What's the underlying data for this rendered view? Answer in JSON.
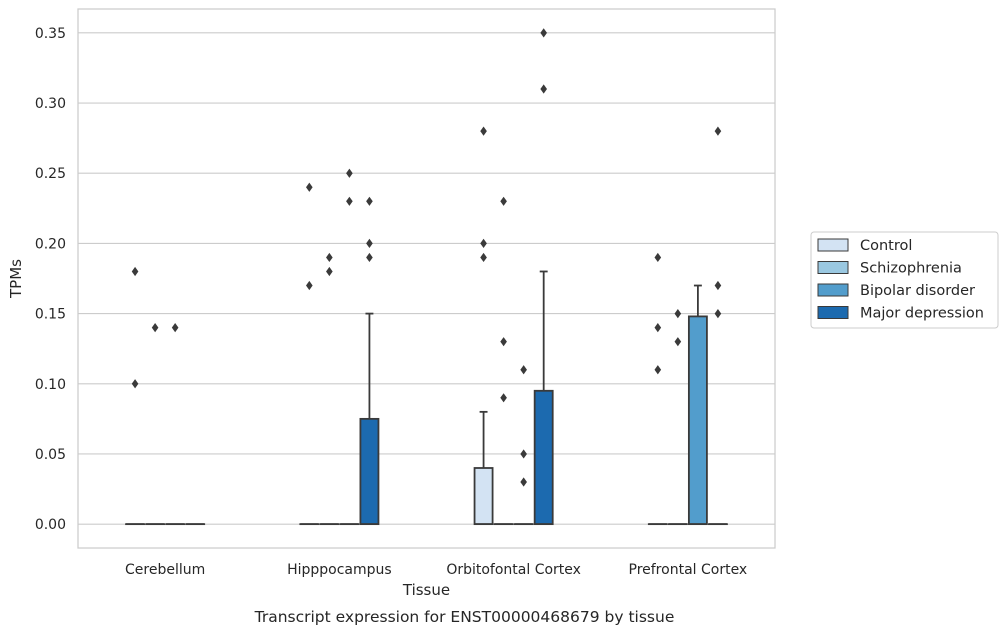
{
  "chart_data": {
    "type": "box",
    "caption": "Transcript expression for ENST00000468679 by tissue",
    "xlabel": "Tissue",
    "ylabel": "TPMs",
    "ylim": [
      -0.017,
      0.367
    ],
    "yticks": [
      0.0,
      0.05,
      0.1,
      0.15,
      0.2,
      0.25,
      0.3,
      0.35
    ],
    "ytick_labels": [
      "0.00",
      "0.05",
      "0.10",
      "0.15",
      "0.20",
      "0.25",
      "0.30",
      "0.35"
    ],
    "grid": "horizontal",
    "legend_position": "right",
    "categories": [
      "Cerebellum",
      "Hipppocampus",
      "Orbitofontal Cortex",
      "Prefrontal Cortex"
    ],
    "series": [
      {
        "name": "Control",
        "color": "#d3e3f3"
      },
      {
        "name": "Schizophrenia",
        "color": "#9ac8e1"
      },
      {
        "name": "Bipolar disorder",
        "color": "#529dcc"
      },
      {
        "name": "Major depression",
        "color": "#1c6aaf"
      }
    ],
    "boxes": [
      {
        "category": 0,
        "series": 0,
        "q1": 0,
        "median": 0,
        "q3": 0,
        "whisker_low": 0,
        "whisker_high": 0,
        "outliers": [
          0.18,
          0.1
        ]
      },
      {
        "category": 0,
        "series": 1,
        "q1": 0,
        "median": 0,
        "q3": 0,
        "whisker_low": 0,
        "whisker_high": 0,
        "outliers": [
          0.14
        ]
      },
      {
        "category": 0,
        "series": 2,
        "q1": 0,
        "median": 0,
        "q3": 0,
        "whisker_low": 0,
        "whisker_high": 0,
        "outliers": [
          0.14
        ]
      },
      {
        "category": 0,
        "series": 3,
        "q1": 0,
        "median": 0,
        "q3": 0,
        "whisker_low": 0,
        "whisker_high": 0,
        "outliers": []
      },
      {
        "category": 1,
        "series": 0,
        "q1": 0,
        "median": 0,
        "q3": 0,
        "whisker_low": 0,
        "whisker_high": 0,
        "outliers": [
          0.24,
          0.17
        ]
      },
      {
        "category": 1,
        "series": 1,
        "q1": 0,
        "median": 0,
        "q3": 0,
        "whisker_low": 0,
        "whisker_high": 0,
        "outliers": [
          0.19,
          0.18
        ]
      },
      {
        "category": 1,
        "series": 2,
        "q1": 0,
        "median": 0,
        "q3": 0,
        "whisker_low": 0,
        "whisker_high": 0,
        "outliers": [
          0.25,
          0.23
        ]
      },
      {
        "category": 1,
        "series": 3,
        "q1": 0,
        "median": 0,
        "q3": 0.075,
        "whisker_low": 0,
        "whisker_high": 0.15,
        "outliers": [
          0.23,
          0.2,
          0.19
        ]
      },
      {
        "category": 2,
        "series": 0,
        "q1": 0,
        "median": 0,
        "q3": 0.04,
        "whisker_low": 0,
        "whisker_high": 0.08,
        "outliers": [
          0.28,
          0.2,
          0.19
        ]
      },
      {
        "category": 2,
        "series": 1,
        "q1": 0,
        "median": 0,
        "q3": 0,
        "whisker_low": 0,
        "whisker_high": 0,
        "outliers": [
          0.23,
          0.13,
          0.09
        ]
      },
      {
        "category": 2,
        "series": 2,
        "q1": 0,
        "median": 0,
        "q3": 0,
        "whisker_low": 0,
        "whisker_high": 0,
        "outliers": [
          0.11,
          0.05,
          0.03
        ]
      },
      {
        "category": 2,
        "series": 3,
        "q1": 0,
        "median": 0,
        "q3": 0.095,
        "whisker_low": 0,
        "whisker_high": 0.18,
        "outliers": [
          0.35,
          0.31
        ]
      },
      {
        "category": 3,
        "series": 0,
        "q1": 0,
        "median": 0,
        "q3": 0,
        "whisker_low": 0,
        "whisker_high": 0,
        "outliers": [
          0.19,
          0.14,
          0.11
        ]
      },
      {
        "category": 3,
        "series": 1,
        "q1": 0,
        "median": 0,
        "q3": 0,
        "whisker_low": 0,
        "whisker_high": 0,
        "outliers": [
          0.15,
          0.13
        ]
      },
      {
        "category": 3,
        "series": 2,
        "q1": 0,
        "median": 0,
        "q3": 0.148,
        "whisker_low": 0,
        "whisker_high": 0.17,
        "outliers": []
      },
      {
        "category": 3,
        "series": 3,
        "q1": 0,
        "median": 0,
        "q3": 0,
        "whisker_low": 0,
        "whisker_high": 0,
        "outliers": [
          0.28,
          0.17,
          0.15
        ]
      }
    ]
  }
}
